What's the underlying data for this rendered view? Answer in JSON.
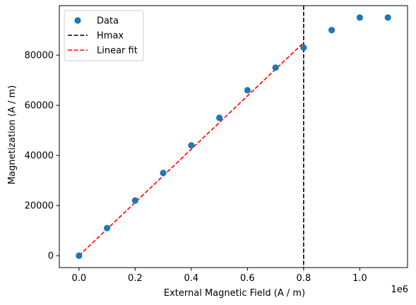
{
  "chart_data": {
    "type": "scatter",
    "xlabel": "External Magnetic Field (A / m)",
    "ylabel": "Magnetization (A / m)",
    "x_offset_text": "1e6",
    "xlim": [
      -70000,
      1170000
    ],
    "ylim": [
      -4750,
      99750
    ],
    "x_ticks": [
      0,
      200000,
      400000,
      600000,
      800000,
      1000000
    ],
    "x_tick_labels": [
      "0.0",
      "0.2",
      "0.4",
      "0.6",
      "0.8",
      "1.0"
    ],
    "y_ticks": [
      0,
      20000,
      40000,
      60000,
      80000
    ],
    "y_tick_labels": [
      "0",
      "20000",
      "40000",
      "60000",
      "80000"
    ],
    "grid": false,
    "legend_position": "upper-left",
    "colors": {
      "data": "#1f77b4",
      "hmax": "#000000",
      "fit": "#ff0000"
    },
    "series": [
      {
        "name": "Data",
        "kind": "scatter",
        "x": [
          0,
          100000,
          200000,
          300000,
          400000,
          500000,
          600000,
          700000,
          800000,
          900000,
          1000000,
          1100000
        ],
        "y": [
          0,
          11000,
          22000,
          33000,
          44000,
          55000,
          66000,
          75000,
          83000,
          90000,
          95000,
          95000
        ]
      },
      {
        "name": "Hmax",
        "kind": "vline",
        "x": 800000
      },
      {
        "name": "Linear fit",
        "kind": "line",
        "x": [
          0,
          800000
        ],
        "y": [
          0,
          85000
        ]
      }
    ]
  }
}
